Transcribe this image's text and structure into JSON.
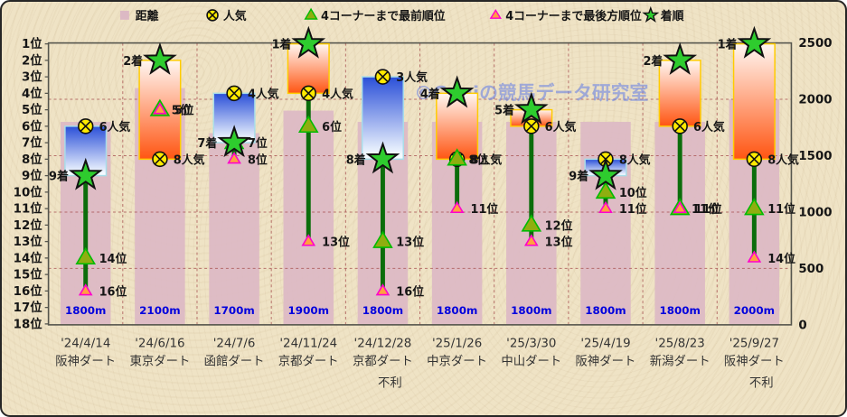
{
  "legend": [
    {
      "icon": "distance-swatch",
      "label": "距離"
    },
    {
      "icon": "popularity-mark",
      "label": "人気"
    },
    {
      "icon": "front-triangle-mark",
      "label": "4コーナーまで最前順位"
    },
    {
      "icon": "rear-triangle-mark",
      "label": "4コーナーまで最後方順位"
    },
    {
      "icon": "finish-star-mark",
      "label": "着順"
    }
  ],
  "watermark": "©Caniの競馬データ研究室",
  "chart_data": {
    "type": "combo",
    "series_names": [
      "距離",
      "人気",
      "4コーナーまで最前順位",
      "4コーナーまで最後方順位",
      "着順"
    ],
    "left_axis": {
      "min": 1,
      "max": 18,
      "tick_suffix": "位"
    },
    "right_axis": {
      "label_values": [
        0,
        500,
        1000,
        1500,
        2000,
        2500
      ],
      "max": 2500
    },
    "grid": "dashed",
    "columns": [
      {
        "date": "'24/4/14",
        "track": "阪神ダート",
        "distance_m": 1800,
        "distance_label": "1800m",
        "popularity": 6,
        "popularity_label": "6人気",
        "finish": 9,
        "finish_label": "9着",
        "front": 14,
        "front_label": "14位",
        "rear": 16,
        "rear_label": "16位",
        "note": ""
      },
      {
        "date": "'24/6/16",
        "track": "東京ダート",
        "distance_m": 2100,
        "distance_label": "2100m",
        "popularity": 8,
        "popularity_label": "8人気",
        "finish": 2,
        "finish_label": "2着",
        "front": 5,
        "front_label": "5位",
        "rear": 5,
        "rear_label": "5位",
        "note": ""
      },
      {
        "date": "'24/7/6",
        "track": "函館ダート",
        "distance_m": 1700,
        "distance_label": "1700m",
        "popularity": 4,
        "popularity_label": "4人気",
        "finish": 7,
        "finish_label": "7着",
        "front": 7,
        "front_label": "7位",
        "rear": 8,
        "rear_label": "8位",
        "note": ""
      },
      {
        "date": "'24/11/24",
        "track": "京都ダート",
        "distance_m": 1900,
        "distance_label": "1900m",
        "popularity": 4,
        "popularity_label": "4人気",
        "finish": 1,
        "finish_label": "1着",
        "front": 6,
        "front_label": "6位",
        "rear": 13,
        "rear_label": "13位",
        "note": ""
      },
      {
        "date": "'24/12/28",
        "track": "京都ダート",
        "distance_m": 1800,
        "distance_label": "1800m",
        "popularity": 3,
        "popularity_label": "3人気",
        "finish": 8,
        "finish_label": "8着",
        "front": 13,
        "front_label": "13位",
        "rear": 16,
        "rear_label": "16位",
        "note": "不利"
      },
      {
        "date": "'25/1/26",
        "track": "中京ダート",
        "distance_m": 1800,
        "distance_label": "1800m",
        "popularity": 8,
        "popularity_label": "8人気",
        "finish": 4,
        "finish_label": "4着",
        "front": 8,
        "front_label": "8位",
        "rear": 11,
        "rear_label": "11位",
        "note": ""
      },
      {
        "date": "'25/3/30",
        "track": "中山ダート",
        "distance_m": 1800,
        "distance_label": "1800m",
        "popularity": 6,
        "popularity_label": "6人気",
        "finish": 5,
        "finish_label": "5着",
        "front": 12,
        "front_label": "12位",
        "rear": 13,
        "rear_label": "13位",
        "note": ""
      },
      {
        "date": "'25/4/19",
        "track": "阪神ダート",
        "distance_m": 1800,
        "distance_label": "1800m",
        "popularity": 8,
        "popularity_label": "8人気",
        "finish": 9,
        "finish_label": "9着",
        "front": 10,
        "front_label": "10位",
        "rear": 11,
        "rear_label": "11位",
        "note": ""
      },
      {
        "date": "'25/8/23",
        "track": "新潟ダート",
        "distance_m": 1800,
        "distance_label": "1800m",
        "popularity": 6,
        "popularity_label": "6人気",
        "finish": 2,
        "finish_label": "2着",
        "front": 11,
        "front_label": "11位",
        "rear": 11,
        "rear_label": "11位",
        "note": ""
      },
      {
        "date": "'25/9/27",
        "track": "阪神ダート",
        "distance_m": 2000,
        "distance_label": "2000m",
        "popularity": 8,
        "popularity_label": "8人気",
        "finish": 1,
        "finish_label": "1着",
        "front": 11,
        "front_label": "11位",
        "rear": 14,
        "rear_label": "14位",
        "note": "不利"
      }
    ]
  },
  "colors": {
    "background": "#efe3c5",
    "bar": "#dcb9c4",
    "grid": "#aa5555",
    "axis": "#55554d",
    "box_decline_top": "#2a4fd8",
    "box_decline_bottom": "#f4faff",
    "box_decline_border": "#a8dde8",
    "box_improve_top": "#fff7f2",
    "box_improve_bottom": "#ff5512",
    "box_improve_border": "#ffcc00",
    "star_fill": "#2ecc2e",
    "popularity_fill": "#ffea00",
    "front_fill": "#8fae10",
    "front_stroke": "#00bb00",
    "rear_fill": "#ffa040",
    "rear_stroke": "#ff00cc",
    "stem": "#0b6d0b",
    "distance_text": "#0000dd",
    "watermark_text": "#6c84e4",
    "label_text": "#151515",
    "date_text": "#333333"
  }
}
